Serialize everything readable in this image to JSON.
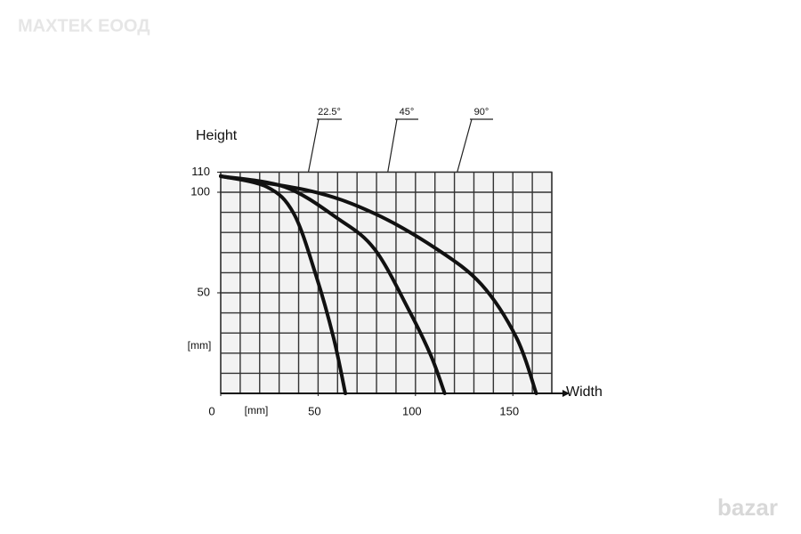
{
  "chart_data": {
    "type": "line",
    "watermark": "MAXTEK ЕООД",
    "logo": "bazar",
    "ylabel": "Height",
    "xlabel": "Width",
    "xunit": "[mm]",
    "yunit": "[mm]",
    "xlim": [
      0,
      170
    ],
    "ylim": [
      0,
      110
    ],
    "xticks": [
      0,
      50,
      100,
      150
    ],
    "yticks": [
      50,
      100,
      110
    ],
    "grid": true,
    "grid_step": 10,
    "series": [
      {
        "name": "22.5°",
        "color": "#111111",
        "x": [
          0,
          23.8,
          37.5,
          49,
          58,
          64
        ],
        "values": [
          108,
          102.6,
          89.4,
          58.4,
          27.4,
          0
        ]
      },
      {
        "name": "45°",
        "color": "#111111",
        "x": [
          0,
          33,
          60,
          79,
          97,
          108,
          115
        ],
        "values": [
          108,
          102.6,
          87,
          71.7,
          40.7,
          18.6,
          0
        ]
      },
      {
        "name": "90°",
        "color": "#111111",
        "x": [
          0,
          47,
          79,
          111,
          134,
          152,
          162
        ],
        "values": [
          108,
          100.4,
          89.4,
          71.7,
          54,
          27.4,
          0
        ]
      }
    ]
  }
}
